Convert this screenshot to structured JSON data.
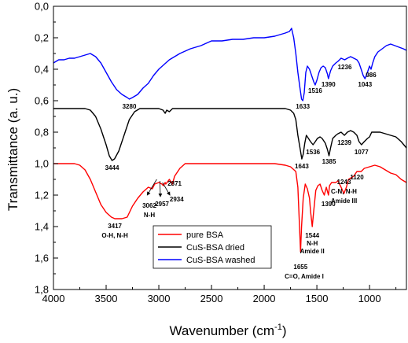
{
  "chart_data": {
    "type": "line",
    "xlabel": "Wavenumber (cm",
    "xlabel_sup": "-1",
    "xlabel_close": ")",
    "ylabel": "Transmittance (a. u.)",
    "xlim": [
      4000,
      650
    ],
    "ylim": [
      0.0,
      1.8
    ],
    "x_reversed": true,
    "y_reversed": true,
    "x_ticks": [
      4000,
      3500,
      3000,
      2500,
      2000,
      1500,
      1000
    ],
    "x_tick_labels": [
      "4000",
      "3500",
      "3000",
      "2500",
      "2000",
      "1500",
      "1000"
    ],
    "y_ticks": [
      0.0,
      0.2,
      0.4,
      0.6,
      0.8,
      1.0,
      1.2,
      1.4,
      1.6,
      1.8
    ],
    "y_tick_labels": [
      "0,0",
      "0,2",
      "0,4",
      "0,6",
      "0,8",
      "1,0",
      "1,2",
      "1,4",
      "1,6",
      "1,8"
    ],
    "grid": false,
    "legend_position": "bottom-center",
    "series": [
      {
        "name": "pure BSA",
        "color": "#ff0000",
        "points": [
          [
            4000,
            1.0
          ],
          [
            3900,
            1.0
          ],
          [
            3800,
            1.0
          ],
          [
            3750,
            1.01
          ],
          [
            3700,
            1.04
          ],
          [
            3650,
            1.1
          ],
          [
            3600,
            1.18
          ],
          [
            3550,
            1.26
          ],
          [
            3500,
            1.31
          ],
          [
            3450,
            1.34
          ],
          [
            3417,
            1.35
          ],
          [
            3350,
            1.35
          ],
          [
            3300,
            1.34
          ],
          [
            3250,
            1.27
          ],
          [
            3200,
            1.22
          ],
          [
            3150,
            1.18
          ],
          [
            3100,
            1.15
          ],
          [
            3062,
            1.16
          ],
          [
            3040,
            1.13
          ],
          [
            3000,
            1.12
          ],
          [
            2970,
            1.13
          ],
          [
            2957,
            1.14
          ],
          [
            2940,
            1.12
          ],
          [
            2934,
            1.13
          ],
          [
            2900,
            1.1
          ],
          [
            2871,
            1.13
          ],
          [
            2850,
            1.08
          ],
          [
            2800,
            1.03
          ],
          [
            2750,
            1.0
          ],
          [
            2700,
            1.0
          ],
          [
            2500,
            1.0
          ],
          [
            2300,
            1.0
          ],
          [
            2100,
            1.0
          ],
          [
            1900,
            1.0
          ],
          [
            1800,
            1.01
          ],
          [
            1750,
            1.02
          ],
          [
            1700,
            1.05
          ],
          [
            1680,
            1.15
          ],
          [
            1665,
            1.4
          ],
          [
            1655,
            1.56
          ],
          [
            1645,
            1.4
          ],
          [
            1630,
            1.22
          ],
          [
            1610,
            1.13
          ],
          [
            1590,
            1.16
          ],
          [
            1570,
            1.22
          ],
          [
            1560,
            1.3
          ],
          [
            1544,
            1.4
          ],
          [
            1530,
            1.3
          ],
          [
            1510,
            1.17
          ],
          [
            1490,
            1.14
          ],
          [
            1470,
            1.13
          ],
          [
            1450,
            1.17
          ],
          [
            1430,
            1.2
          ],
          [
            1410,
            1.15
          ],
          [
            1390,
            1.2
          ],
          [
            1380,
            1.14
          ],
          [
            1360,
            1.12
          ],
          [
            1320,
            1.12
          ],
          [
            1300,
            1.11
          ],
          [
            1270,
            1.15
          ],
          [
            1243,
            1.19
          ],
          [
            1220,
            1.15
          ],
          [
            1200,
            1.1
          ],
          [
            1150,
            1.08
          ],
          [
            1120,
            1.05
          ],
          [
            1080,
            1.05
          ],
          [
            1050,
            1.03
          ],
          [
            1000,
            1.02
          ],
          [
            950,
            1.01
          ],
          [
            900,
            1.02
          ],
          [
            850,
            1.04
          ],
          [
            800,
            1.06
          ],
          [
            750,
            1.07
          ],
          [
            700,
            1.1
          ],
          [
            650,
            1.12
          ]
        ]
      },
      {
        "name": "CuS-BSA dried",
        "color": "#000000",
        "points": [
          [
            4000,
            0.65
          ],
          [
            3900,
            0.65
          ],
          [
            3800,
            0.65
          ],
          [
            3700,
            0.65
          ],
          [
            3650,
            0.66
          ],
          [
            3600,
            0.7
          ],
          [
            3550,
            0.78
          ],
          [
            3500,
            0.88
          ],
          [
            3470,
            0.95
          ],
          [
            3444,
            0.98
          ],
          [
            3420,
            0.97
          ],
          [
            3380,
            0.92
          ],
          [
            3330,
            0.82
          ],
          [
            3280,
            0.72
          ],
          [
            3230,
            0.67
          ],
          [
            3180,
            0.65
          ],
          [
            3100,
            0.65
          ],
          [
            3000,
            0.65
          ],
          [
            2960,
            0.66
          ],
          [
            2940,
            0.68
          ],
          [
            2925,
            0.66
          ],
          [
            2900,
            0.67
          ],
          [
            2870,
            0.65
          ],
          [
            2800,
            0.65
          ],
          [
            2600,
            0.65
          ],
          [
            2400,
            0.65
          ],
          [
            2200,
            0.65
          ],
          [
            2000,
            0.65
          ],
          [
            1800,
            0.65
          ],
          [
            1750,
            0.66
          ],
          [
            1720,
            0.68
          ],
          [
            1700,
            0.72
          ],
          [
            1680,
            0.82
          ],
          [
            1660,
            0.9
          ],
          [
            1643,
            0.97
          ],
          [
            1630,
            0.94
          ],
          [
            1615,
            0.87
          ],
          [
            1600,
            0.82
          ],
          [
            1580,
            0.84
          ],
          [
            1560,
            0.86
          ],
          [
            1536,
            0.88
          ],
          [
            1515,
            0.86
          ],
          [
            1495,
            0.84
          ],
          [
            1470,
            0.83
          ],
          [
            1450,
            0.84
          ],
          [
            1420,
            0.87
          ],
          [
            1400,
            0.91
          ],
          [
            1385,
            0.95
          ],
          [
            1370,
            0.9
          ],
          [
            1350,
            0.84
          ],
          [
            1320,
            0.82
          ],
          [
            1300,
            0.81
          ],
          [
            1270,
            0.8
          ],
          [
            1239,
            0.82
          ],
          [
            1210,
            0.8
          ],
          [
            1180,
            0.79
          ],
          [
            1150,
            0.8
          ],
          [
            1120,
            0.82
          ],
          [
            1100,
            0.86
          ],
          [
            1077,
            0.88
          ],
          [
            1050,
            0.86
          ],
          [
            1020,
            0.84
          ],
          [
            1000,
            0.83
          ],
          [
            980,
            0.8
          ],
          [
            950,
            0.8
          ],
          [
            900,
            0.8
          ],
          [
            850,
            0.81
          ],
          [
            800,
            0.82
          ],
          [
            750,
            0.83
          ],
          [
            700,
            0.86
          ],
          [
            650,
            0.9
          ]
        ]
      },
      {
        "name": "CuS-BSA washed",
        "color": "#0000ff",
        "points": [
          [
            4000,
            0.36
          ],
          [
            3950,
            0.34
          ],
          [
            3900,
            0.34
          ],
          [
            3850,
            0.33
          ],
          [
            3800,
            0.33
          ],
          [
            3750,
            0.32
          ],
          [
            3700,
            0.31
          ],
          [
            3650,
            0.3
          ],
          [
            3600,
            0.32
          ],
          [
            3550,
            0.36
          ],
          [
            3500,
            0.42
          ],
          [
            3450,
            0.48
          ],
          [
            3400,
            0.53
          ],
          [
            3350,
            0.56
          ],
          [
            3300,
            0.58
          ],
          [
            3280,
            0.59
          ],
          [
            3250,
            0.58
          ],
          [
            3200,
            0.56
          ],
          [
            3150,
            0.52
          ],
          [
            3100,
            0.49
          ],
          [
            3050,
            0.44
          ],
          [
            3000,
            0.4
          ],
          [
            2950,
            0.37
          ],
          [
            2900,
            0.34
          ],
          [
            2850,
            0.32
          ],
          [
            2800,
            0.3
          ],
          [
            2700,
            0.27
          ],
          [
            2600,
            0.25
          ],
          [
            2500,
            0.22
          ],
          [
            2400,
            0.22
          ],
          [
            2300,
            0.21
          ],
          [
            2200,
            0.21
          ],
          [
            2100,
            0.2
          ],
          [
            2000,
            0.2
          ],
          [
            1900,
            0.19
          ],
          [
            1800,
            0.17
          ],
          [
            1760,
            0.16
          ],
          [
            1740,
            0.14
          ],
          [
            1720,
            0.2
          ],
          [
            1700,
            0.3
          ],
          [
            1680,
            0.42
          ],
          [
            1660,
            0.52
          ],
          [
            1645,
            0.59
          ],
          [
            1633,
            0.6
          ],
          [
            1620,
            0.55
          ],
          [
            1605,
            0.42
          ],
          [
            1590,
            0.38
          ],
          [
            1570,
            0.4
          ],
          [
            1550,
            0.44
          ],
          [
            1530,
            0.48
          ],
          [
            1516,
            0.5
          ],
          [
            1500,
            0.47
          ],
          [
            1480,
            0.42
          ],
          [
            1460,
            0.39
          ],
          [
            1440,
            0.38
          ],
          [
            1420,
            0.39
          ],
          [
            1400,
            0.43
          ],
          [
            1390,
            0.46
          ],
          [
            1370,
            0.41
          ],
          [
            1350,
            0.38
          ],
          [
            1320,
            0.36
          ],
          [
            1300,
            0.35
          ],
          [
            1270,
            0.33
          ],
          [
            1236,
            0.34
          ],
          [
            1210,
            0.33
          ],
          [
            1180,
            0.32
          ],
          [
            1150,
            0.33
          ],
          [
            1120,
            0.34
          ],
          [
            1100,
            0.36
          ],
          [
            1080,
            0.4
          ],
          [
            1060,
            0.44
          ],
          [
            1043,
            0.46
          ],
          [
            1020,
            0.42
          ],
          [
            1000,
            0.38
          ],
          [
            986,
            0.4
          ],
          [
            970,
            0.36
          ],
          [
            950,
            0.32
          ],
          [
            920,
            0.29
          ],
          [
            880,
            0.27
          ],
          [
            840,
            0.25
          ],
          [
            800,
            0.24
          ],
          [
            760,
            0.25
          ],
          [
            720,
            0.26
          ],
          [
            680,
            0.27
          ],
          [
            650,
            0.28
          ]
        ]
      }
    ],
    "annotations": [
      {
        "text": "3280",
        "x": 3280,
        "y": 0.65
      },
      {
        "text": "1633",
        "x": 1633,
        "y": 0.65
      },
      {
        "text": "1516",
        "x": 1516,
        "y": 0.55
      },
      {
        "text": "1390",
        "x": 1390,
        "y": 0.51
      },
      {
        "text": "1236",
        "x": 1236,
        "y": 0.4
      },
      {
        "text": "1043",
        "x": 1043,
        "y": 0.51
      },
      {
        "text": "986",
        "x": 986,
        "y": 0.45
      },
      {
        "text": "3444",
        "x": 3444,
        "y": 1.04
      },
      {
        "text": "1643",
        "x": 1643,
        "y": 1.03
      },
      {
        "text": "1536",
        "x": 1536,
        "y": 0.94
      },
      {
        "text": "1385",
        "x": 1385,
        "y": 1.0
      },
      {
        "text": "1239",
        "x": 1239,
        "y": 0.88
      },
      {
        "text": "1077",
        "x": 1077,
        "y": 0.94
      },
      {
        "text": "3417",
        "x": 3417,
        "y": 1.41
      },
      {
        "text": "O-H, N-H",
        "x": 3417,
        "y": 1.47
      },
      {
        "text": "3062",
        "x": 3090,
        "y": 1.28
      },
      {
        "text": "N-H",
        "x": 3090,
        "y": 1.34
      },
      {
        "text": "2957",
        "x": 2970,
        "y": 1.27
      },
      {
        "text": "2934",
        "x": 2830,
        "y": 1.24
      },
      {
        "text": "2871",
        "x": 2850,
        "y": 1.14
      },
      {
        "text": "1655",
        "x": 1655,
        "y": 1.67
      },
      {
        "text": "C=O, Amide I",
        "x": 1620,
        "y": 1.73
      },
      {
        "text": "1544",
        "x": 1544,
        "y": 1.47
      },
      {
        "text": "N-H",
        "x": 1544,
        "y": 1.52
      },
      {
        "text": "Amide II",
        "x": 1544,
        "y": 1.57
      },
      {
        "text": "1390",
        "x": 1390,
        "y": 1.27
      },
      {
        "text": "1243",
        "x": 1243,
        "y": 1.13
      },
      {
        "text": "C-N, N-H",
        "x": 1243,
        "y": 1.19
      },
      {
        "text": "Amide III",
        "x": 1243,
        "y": 1.25
      },
      {
        "text": "1120",
        "x": 1120,
        "y": 1.1
      }
    ],
    "arrows": [
      {
        "from": [
          3020,
          1.1
        ],
        "to": [
          3110,
          1.2
        ]
      },
      {
        "from": [
          2990,
          1.11
        ],
        "to": [
          2985,
          1.21
        ]
      },
      {
        "from": [
          2965,
          1.12
        ],
        "to": [
          2895,
          1.2
        ]
      }
    ]
  }
}
